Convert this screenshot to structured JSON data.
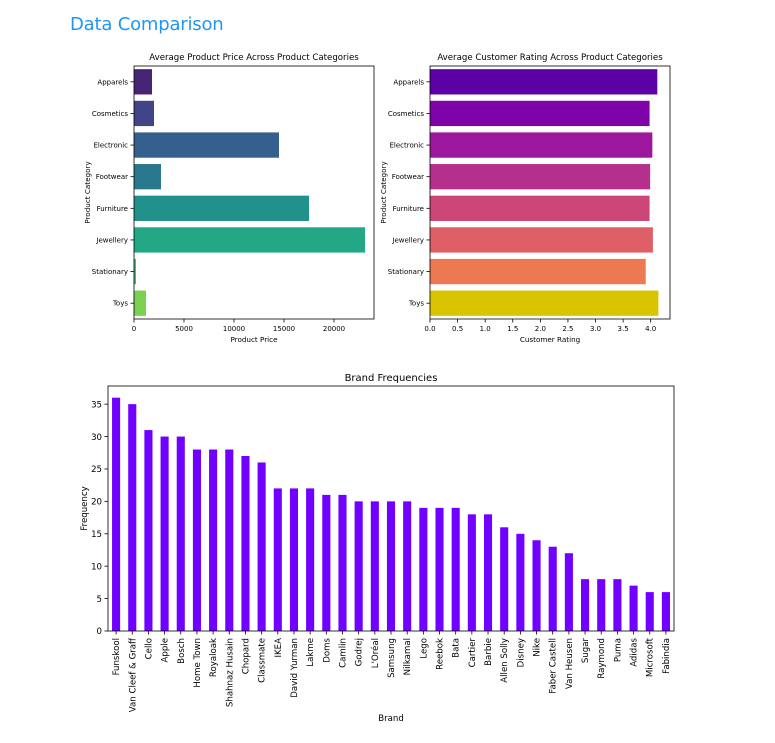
{
  "page": {
    "heading": "Data Comparison"
  },
  "chart_data": [
    {
      "type": "bar",
      "orientation": "horizontal",
      "title": "Average Product Price Across Product Categories",
      "xlabel": "Product Price",
      "ylabel": "Product Category",
      "categories": [
        "Apparels",
        "Cosmetics",
        "Electronic",
        "Footwear",
        "Furniture",
        "Jewellery",
        "Stationary",
        "Toys"
      ],
      "values": [
        1800,
        2000,
        14500,
        2700,
        17500,
        23100,
        200,
        1200
      ],
      "colors": [
        "#482475",
        "#414487",
        "#355f8d",
        "#2a788e",
        "#21918c",
        "#22a884",
        "#44bf70",
        "#7ad151"
      ],
      "xlim": [
        0,
        24000
      ],
      "xticks": [
        0,
        5000,
        10000,
        15000,
        20000
      ],
      "grid": false
    },
    {
      "type": "bar",
      "orientation": "horizontal",
      "title": "Average Customer Rating Across Product Categories",
      "xlabel": "Customer Rating",
      "ylabel": "Product Category",
      "categories": [
        "Apparels",
        "Cosmetics",
        "Electronic",
        "Footwear",
        "Furniture",
        "Jewellery",
        "Stationary",
        "Toys"
      ],
      "values": [
        4.12,
        3.98,
        4.03,
        3.99,
        3.98,
        4.04,
        3.91,
        4.14
      ],
      "colors": [
        "#5c01a6",
        "#7e03a8",
        "#9c179e",
        "#b52f8c",
        "#cc4778",
        "#de5f65",
        "#ed7953",
        "#d8c400"
      ],
      "xlim": [
        0,
        4.35
      ],
      "xticks": [
        0.0,
        0.5,
        1.0,
        1.5,
        2.0,
        2.5,
        3.0,
        3.5,
        4.0
      ],
      "grid": false
    },
    {
      "type": "bar",
      "title": "Brand Frequencies",
      "xlabel": "Brand",
      "ylabel": "Frequency",
      "categories": [
        "Funskool",
        "Van Cleef & Graff",
        "Cello",
        "Apple",
        "Bosch",
        "Home Town",
        "Royaloak",
        "Shahnaz Husain",
        "Chopard",
        "Classmate",
        "IKEA",
        "David Yurman",
        "Lakme",
        "Doms",
        "Camlin",
        "Godrej",
        "L'Oréal",
        "Samsung",
        "Nilkamal",
        "Lego",
        "Reebok",
        "Bata",
        "Cartier",
        "Barbie",
        "Allen Solly",
        "Disney",
        "Nike",
        "Faber Castell",
        "Van Heusen",
        "Sugar",
        "Raymond",
        "Puma",
        "Adidas",
        "Microsoft",
        "Fabindia"
      ],
      "values": [
        36,
        35,
        31,
        30,
        30,
        28,
        28,
        28,
        27,
        26,
        22,
        22,
        22,
        21,
        21,
        20,
        20,
        20,
        20,
        19,
        19,
        19,
        18,
        18,
        16,
        15,
        14,
        13,
        12,
        8,
        8,
        8,
        7,
        6,
        6
      ],
      "color": "#7000ff",
      "ylim": [
        0,
        37.8
      ],
      "yticks": [
        0,
        5,
        10,
        15,
        20,
        25,
        30,
        35
      ],
      "grid": false
    }
  ]
}
